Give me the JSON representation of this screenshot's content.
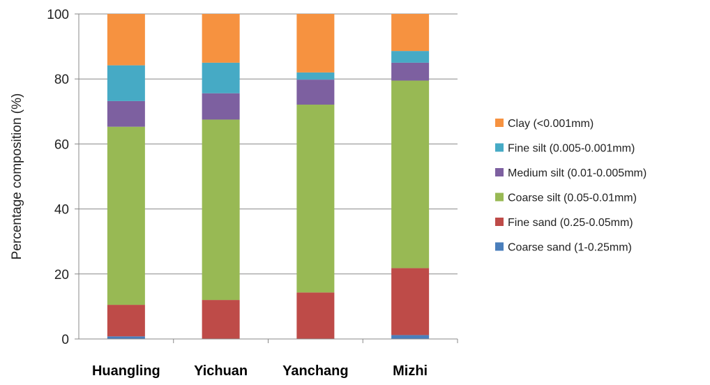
{
  "chart_data": {
    "type": "bar",
    "stacked": true,
    "categories": [
      "Huangling",
      "Yichuan",
      "Yanchang",
      "Mizhi"
    ],
    "ylabel": "Percentage composition (%)",
    "ylim": [
      0,
      100
    ],
    "yticks": [
      "0",
      "20",
      "40",
      "60",
      "80",
      "100"
    ],
    "grid": true,
    "legend_position": "right",
    "series": [
      {
        "name": "Coarse sand (1-0.25mm)",
        "color": "#4a7ebb",
        "values": [
          0.8,
          0.0,
          0.0,
          1.2
        ]
      },
      {
        "name": "Fine sand (0.25-0.05mm)",
        "color": "#be4b48",
        "values": [
          9.7,
          12.0,
          14.3,
          20.6
        ]
      },
      {
        "name": "Coarse silt (0.05-0.01mm)",
        "color": "#98b954",
        "values": [
          54.8,
          55.5,
          57.8,
          57.7
        ]
      },
      {
        "name": "Medium silt (0.01-0.005mm)",
        "color": "#7d60a0",
        "values": [
          7.9,
          8.1,
          7.7,
          5.5
        ]
      },
      {
        "name": "Fine silt (0.005-0.001mm)",
        "color": "#46aac5",
        "values": [
          11.0,
          9.4,
          2.2,
          3.6
        ]
      },
      {
        "name": "Clay (<0.001mm)",
        "color": "#f69240",
        "values": [
          15.8,
          15.0,
          18.0,
          11.4
        ]
      }
    ]
  }
}
